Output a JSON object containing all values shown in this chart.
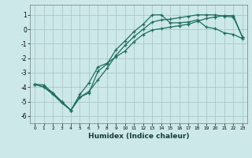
{
  "xlabel": "Humidex (Indice chaleur)",
  "ylabel": "",
  "line_color": "#1e6e60",
  "background_color": "#cde8e8",
  "grid_color": "#aac8c8",
  "xlim": [
    -0.5,
    23.5
  ],
  "ylim": [
    -6.5,
    1.7
  ],
  "xticks": [
    0,
    1,
    2,
    3,
    4,
    5,
    6,
    7,
    8,
    9,
    10,
    11,
    12,
    13,
    14,
    15,
    16,
    17,
    18,
    19,
    20,
    21,
    22,
    23
  ],
  "yticks": [
    -6,
    -5,
    -4,
    -3,
    -2,
    -1,
    0,
    1
  ],
  "line1_x": [
    0,
    1,
    2,
    3,
    4,
    5,
    6,
    7,
    8,
    9,
    10,
    11,
    12,
    13,
    14,
    15,
    16,
    17,
    18,
    19,
    20,
    21,
    22,
    23
  ],
  "line1_y": [
    -3.8,
    -4.0,
    -4.5,
    -5.1,
    -5.6,
    -4.7,
    -4.4,
    -2.9,
    -2.4,
    -1.4,
    -0.8,
    -0.15,
    0.35,
    1.0,
    1.0,
    0.45,
    0.45,
    0.5,
    0.65,
    0.15,
    0.05,
    -0.25,
    -0.35,
    -0.65
  ],
  "line2_x": [
    0,
    1,
    2,
    3,
    4,
    5,
    6,
    7,
    8,
    9,
    10,
    11,
    12,
    13,
    14,
    15,
    16,
    17,
    18,
    19,
    20,
    21,
    22,
    23
  ],
  "line2_y": [
    -3.8,
    -3.85,
    -4.4,
    -5.05,
    -5.6,
    -4.5,
    -3.7,
    -2.6,
    -2.35,
    -1.9,
    -1.5,
    -0.85,
    -0.35,
    -0.05,
    0.05,
    0.15,
    0.25,
    0.35,
    0.55,
    0.75,
    0.85,
    0.95,
    0.95,
    -0.55
  ],
  "line3_x": [
    0,
    1,
    2,
    3,
    4,
    5,
    6,
    7,
    8,
    9,
    10,
    11,
    12,
    13,
    14,
    15,
    16,
    17,
    18,
    19,
    20,
    21,
    22,
    23
  ],
  "line3_y": [
    -3.8,
    -4.0,
    -4.4,
    -5.0,
    -5.6,
    -4.7,
    -4.3,
    -3.5,
    -2.7,
    -1.8,
    -1.1,
    -0.5,
    0.0,
    0.5,
    0.65,
    0.7,
    0.8,
    0.9,
    1.0,
    1.0,
    1.0,
    0.9,
    0.85,
    -0.55
  ]
}
